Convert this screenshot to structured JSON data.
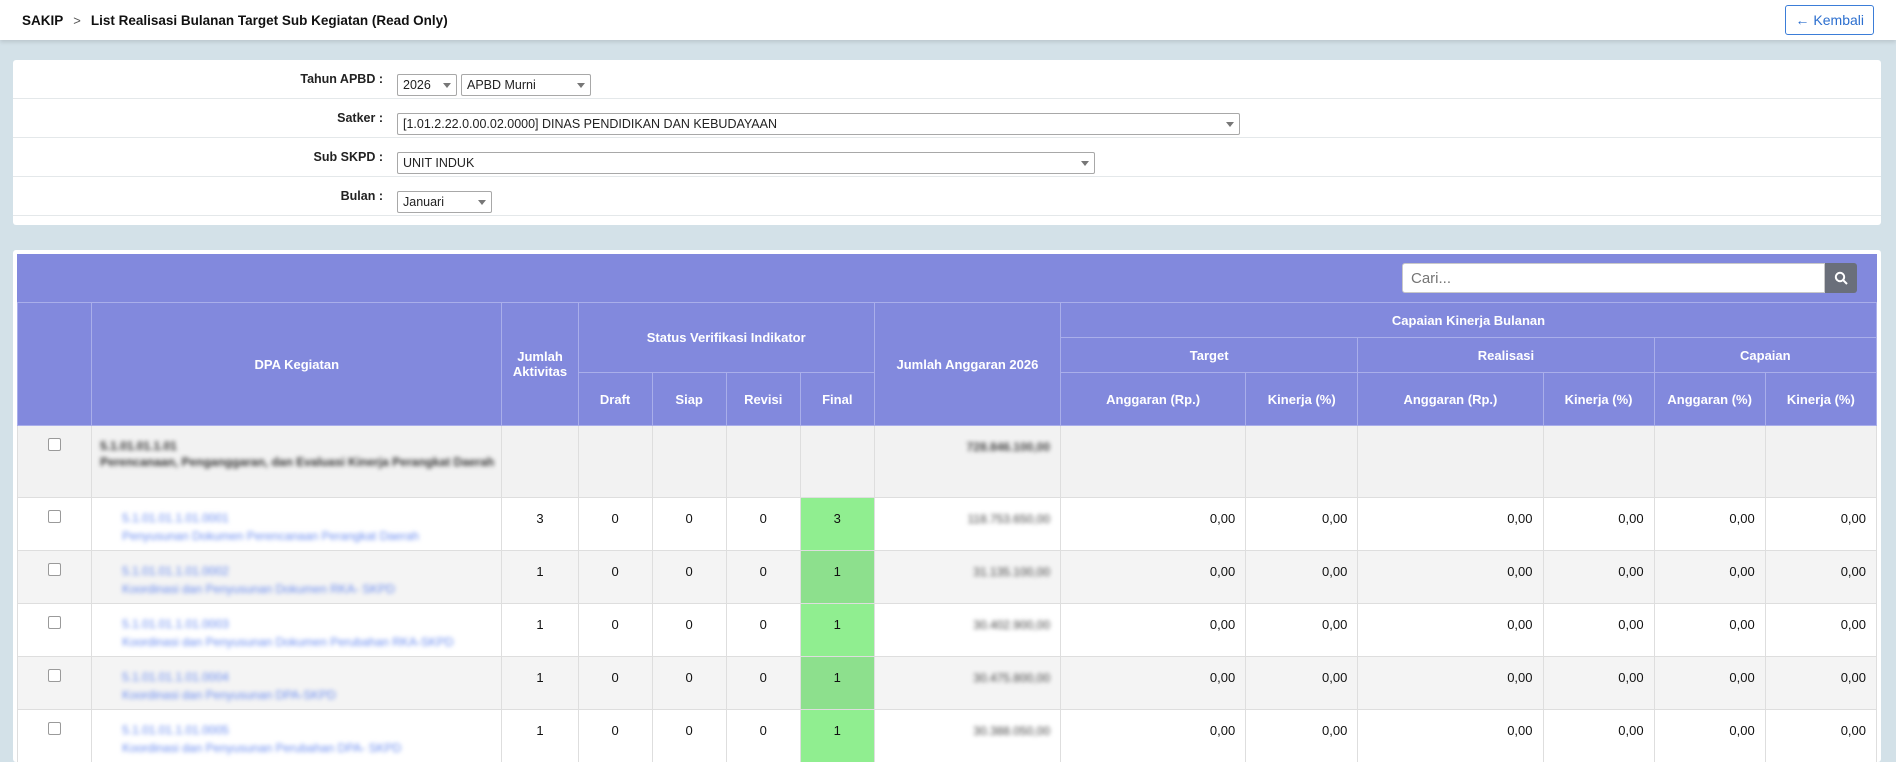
{
  "header": {
    "app": "SAKIP",
    "separator": ">",
    "page_title": "List Realisasi Bulanan Target Sub Kegiatan (Read Only)",
    "back_label": "Kembali"
  },
  "filters": {
    "tahun_label": "Tahun APBD :",
    "tahun_value": "2026",
    "apbd_value": "APBD Murni",
    "satker_label": "Satker :",
    "satker_value": "[1.01.2.22.0.00.02.0000] DINAS PENDIDIKAN DAN KEBUDAYAAN",
    "subskpd_label": "Sub SKPD :",
    "subskpd_value": "UNIT INDUK",
    "bulan_label": "Bulan :",
    "bulan_value": "Januari"
  },
  "search": {
    "placeholder": "Cari..."
  },
  "table": {
    "headers": {
      "dpa": "DPA Kegiatan",
      "jumlah_aktivitas": "Jumlah Aktivitas",
      "status_verifikasi": "Status Verifikasi Indikator",
      "draft": "Draft",
      "siap": "Siap",
      "revisi": "Revisi",
      "final": "Final",
      "jumlah_anggaran": "Jumlah Anggaran 2026",
      "capaian_kinerja": "Capaian Kinerja Bulanan",
      "target": "Target",
      "realisasi": "Realisasi",
      "capaian": "Capaian",
      "anggaran_rp": "Anggaran (Rp.)",
      "kinerja_pct": "Kinerja (%)",
      "anggaran_pct": "Anggaran (%)"
    },
    "group": {
      "code": "5.1.01.01.1.01",
      "name": "Perencanaan, Penganggaran, dan Evaluasi Kinerja Perangkat Daerah",
      "anggaran": "728.846.100,00"
    },
    "rows": [
      {
        "code": "5.1.01.01.1.01.0001",
        "name": "Penyusunan Dokumen Perencanaan Perangkat Daerah",
        "aktivitas": "3",
        "draft": "0",
        "siap": "0",
        "revisi": "0",
        "final": "3",
        "anggaran": "118.753.650,00",
        "t_angg": "0,00",
        "t_kin": "0,00",
        "r_angg": "0,00",
        "r_kin": "0,00",
        "c_angg": "0,00",
        "c_kin": "0,00"
      },
      {
        "code": "5.1.01.01.1.01.0002",
        "name": "Koordinasi dan Penyusunan Dokumen RKA- SKPD",
        "aktivitas": "1",
        "draft": "0",
        "siap": "0",
        "revisi": "0",
        "final": "1",
        "anggaran": "31.135.100,00",
        "t_angg": "0,00",
        "t_kin": "0,00",
        "r_angg": "0,00",
        "r_kin": "0,00",
        "c_angg": "0,00",
        "c_kin": "0,00"
      },
      {
        "code": "5.1.01.01.1.01.0003",
        "name": "Koordinasi dan Penyusunan Dokumen Perubahan RKA-SKPD",
        "aktivitas": "1",
        "draft": "0",
        "siap": "0",
        "revisi": "0",
        "final": "1",
        "anggaran": "30.402.900,00",
        "t_angg": "0,00",
        "t_kin": "0,00",
        "r_angg": "0,00",
        "r_kin": "0,00",
        "c_angg": "0,00",
        "c_kin": "0,00"
      },
      {
        "code": "5.1.01.01.1.01.0004",
        "name": "Koordinasi dan Penyusunan DPA-SKPD",
        "aktivitas": "1",
        "draft": "0",
        "siap": "0",
        "revisi": "0",
        "final": "1",
        "anggaran": "30.475.800,00",
        "t_angg": "0,00",
        "t_kin": "0,00",
        "r_angg": "0,00",
        "r_kin": "0,00",
        "c_angg": "0,00",
        "c_kin": "0,00"
      },
      {
        "code": "5.1.01.01.1.01.0005",
        "name": "Koordinasi dan Penyusunan Perubahan DPA- SKPD",
        "aktivitas": "1",
        "draft": "0",
        "siap": "0",
        "revisi": "0",
        "final": "1",
        "anggaran": "30.388.050,00",
        "t_angg": "0,00",
        "t_kin": "0,00",
        "r_angg": "0,00",
        "r_kin": "0,00",
        "c_angg": "0,00",
        "c_kin": "0,00"
      }
    ]
  },
  "colors": {
    "header_bg": "#8289dd",
    "final_bg": "#90ee90",
    "link": "#6a8cf0",
    "accent": "#2c6fcf"
  }
}
